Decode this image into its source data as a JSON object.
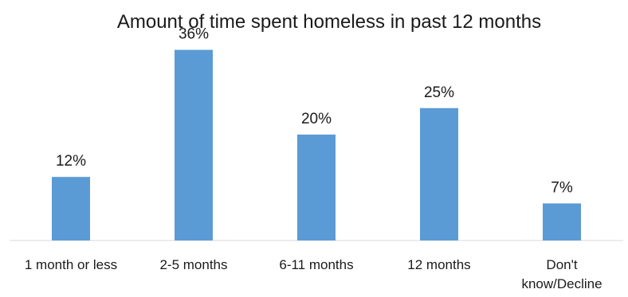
{
  "chart_data": {
    "type": "bar",
    "title": "Amount of time spent homeless in past 12 months",
    "categories": [
      "1 month or less",
      "2-5 months",
      "6-11 months",
      "12 months",
      "Don't know/Decline"
    ],
    "category_lines": [
      [
        "1 month or less"
      ],
      [
        "2-5 months"
      ],
      [
        "6-11 months"
      ],
      [
        "12 months"
      ],
      [
        "Don't",
        "know/Decline"
      ]
    ],
    "values": [
      12,
      36,
      20,
      25,
      7
    ],
    "data_labels": [
      "12%",
      "36%",
      "20%",
      "25%",
      "7%"
    ],
    "unit": "%",
    "ylim": [
      0,
      40
    ],
    "grid": false,
    "legend": "none",
    "bar_color": "#5b9bd5",
    "axis_color": "#d9d9d9",
    "text_color": "#1a1a1a"
  }
}
